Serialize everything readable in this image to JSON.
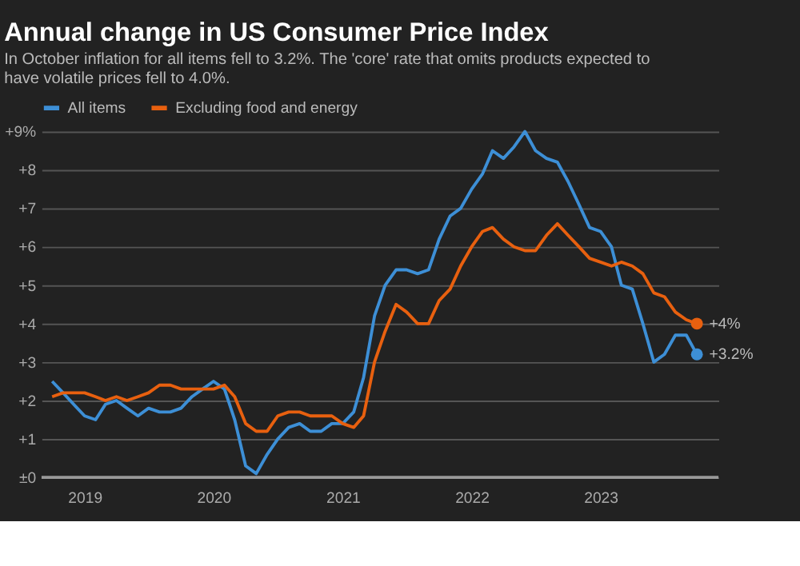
{
  "chart_data": {
    "type": "line",
    "title": "Annual change in US Consumer Price Index",
    "subtitle": "In October inflation for all items fell to 3.2%. The 'core' rate that omits products expected to have volatile prices fell to 4.0%.",
    "x": [
      "2018-10",
      "2018-11",
      "2018-12",
      "2019-01",
      "2019-02",
      "2019-03",
      "2019-04",
      "2019-05",
      "2019-06",
      "2019-07",
      "2019-08",
      "2019-09",
      "2019-10",
      "2019-11",
      "2019-12",
      "2020-01",
      "2020-02",
      "2020-03",
      "2020-04",
      "2020-05",
      "2020-06",
      "2020-07",
      "2020-08",
      "2020-09",
      "2020-10",
      "2020-11",
      "2020-12",
      "2021-01",
      "2021-02",
      "2021-03",
      "2021-04",
      "2021-05",
      "2021-06",
      "2021-07",
      "2021-08",
      "2021-09",
      "2021-10",
      "2021-11",
      "2021-12",
      "2022-01",
      "2022-02",
      "2022-03",
      "2022-04",
      "2022-05",
      "2022-06",
      "2022-07",
      "2022-08",
      "2022-09",
      "2022-10",
      "2022-11",
      "2022-12",
      "2023-01",
      "2023-02",
      "2023-03",
      "2023-04",
      "2023-05",
      "2023-06",
      "2023-07",
      "2023-08",
      "2023-09",
      "2023-10"
    ],
    "series": [
      {
        "name": "All items",
        "color": "#3d8fd6",
        "values": [
          2.5,
          2.2,
          1.9,
          1.6,
          1.5,
          1.9,
          2.0,
          1.8,
          1.6,
          1.8,
          1.7,
          1.7,
          1.8,
          2.1,
          2.3,
          2.5,
          2.3,
          1.5,
          0.3,
          0.1,
          0.6,
          1.0,
          1.3,
          1.4,
          1.2,
          1.2,
          1.4,
          1.4,
          1.7,
          2.6,
          4.2,
          5.0,
          5.4,
          5.4,
          5.3,
          5.4,
          6.2,
          6.8,
          7.0,
          7.5,
          7.9,
          8.5,
          8.3,
          8.6,
          9.0,
          8.5,
          8.3,
          8.2,
          7.7,
          7.1,
          6.5,
          6.4,
          6.0,
          5.0,
          4.9,
          4.0,
          3.0,
          3.2,
          3.7,
          3.7,
          3.2
        ]
      },
      {
        "name": "Excluding food and energy",
        "color": "#e8600f",
        "values": [
          2.1,
          2.2,
          2.2,
          2.2,
          2.1,
          2.0,
          2.1,
          2.0,
          2.1,
          2.2,
          2.4,
          2.4,
          2.3,
          2.3,
          2.3,
          2.3,
          2.4,
          2.1,
          1.4,
          1.2,
          1.2,
          1.6,
          1.7,
          1.7,
          1.6,
          1.6,
          1.6,
          1.4,
          1.3,
          1.6,
          3.0,
          3.8,
          4.5,
          4.3,
          4.0,
          4.0,
          4.6,
          4.9,
          5.5,
          6.0,
          6.4,
          6.5,
          6.2,
          6.0,
          5.9,
          5.9,
          6.3,
          6.6,
          6.3,
          6.0,
          5.7,
          5.6,
          5.5,
          5.6,
          5.5,
          5.3,
          4.8,
          4.7,
          4.3,
          4.1,
          4.0
        ]
      }
    ],
    "annotations": [
      {
        "text": "+4%",
        "x": "2023-10",
        "y": 4.0
      },
      {
        "text": "+3.2%",
        "x": "2023-10",
        "y": 3.2
      }
    ],
    "xlim": [
      "2018-09",
      "2023-12"
    ],
    "xticks": [
      "2019",
      "2020",
      "2021",
      "2022",
      "2023"
    ],
    "ylim": [
      0,
      9
    ],
    "yticks": [
      {
        "value": 0,
        "label": "±0"
      },
      {
        "value": 1,
        "label": "+1"
      },
      {
        "value": 2,
        "label": "+2"
      },
      {
        "value": 3,
        "label": "+3"
      },
      {
        "value": 4,
        "label": "+4"
      },
      {
        "value": 5,
        "label": "+5"
      },
      {
        "value": 6,
        "label": "+6"
      },
      {
        "value": 7,
        "label": "+7"
      },
      {
        "value": 8,
        "label": "+8"
      },
      {
        "value": 9,
        "label": "+9%"
      }
    ],
    "grid": "y",
    "legend": "top left",
    "marker": "none",
    "line_style": "solid"
  }
}
